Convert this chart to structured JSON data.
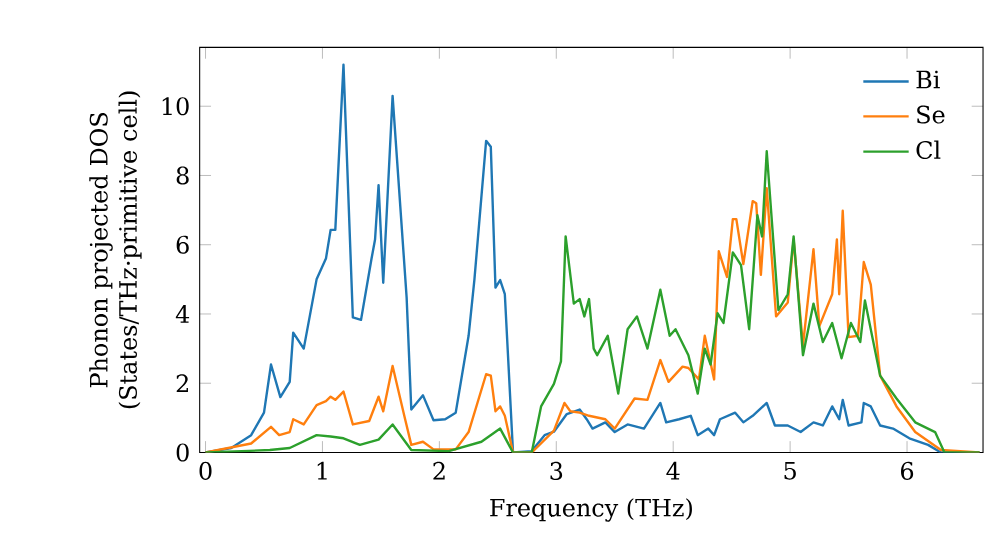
{
  "chart_data": {
    "type": "line",
    "xlabel": "Frequency (THz)",
    "ylabel": "Phonon projected DOS\n(States/THz·primitive cell)",
    "xlim": [
      -0.05,
      6.65
    ],
    "ylim": [
      0,
      11.7
    ],
    "xticks": [
      0,
      1,
      2,
      3,
      4,
      5,
      6
    ],
    "yticks": [
      0,
      2,
      4,
      6,
      8,
      10
    ],
    "legend": "top right",
    "grid": false,
    "series": [
      {
        "name": "Bi",
        "color": "#1f77b4",
        "x": [
          0,
          0.22,
          0.39,
          0.5,
          0.56,
          0.64,
          0.72,
          0.75,
          0.84,
          0.95,
          1.03,
          1.07,
          1.11,
          1.18,
          1.26,
          1.33,
          1.42,
          1.45,
          1.48,
          1.52,
          1.6,
          1.72,
          1.76,
          1.86,
          1.95,
          2.05,
          2.14,
          2.25,
          2.3,
          2.4,
          2.44,
          2.48,
          2.52,
          2.56,
          2.63,
          2.79,
          2.9,
          2.98,
          3.09,
          3.2,
          3.26,
          3.31,
          3.42,
          3.5,
          3.61,
          3.75,
          3.89,
          3.94,
          4.05,
          4.15,
          4.21,
          4.3,
          4.35,
          4.4,
          4.53,
          4.6,
          4.68,
          4.8,
          4.87,
          4.98,
          5.09,
          5.2,
          5.28,
          5.36,
          5.42,
          5.45,
          5.5,
          5.61,
          5.63,
          5.69,
          5.77,
          5.88,
          6.02,
          6.18,
          6.29,
          6.62
        ],
        "values": [
          0,
          0.13,
          0.5,
          1.15,
          2.54,
          1.6,
          2.04,
          3.46,
          3.0,
          5.0,
          5.6,
          6.43,
          6.43,
          11.2,
          3.9,
          3.83,
          5.6,
          6.15,
          7.72,
          4.9,
          10.3,
          4.48,
          1.24,
          1.65,
          0.93,
          0.96,
          1.15,
          3.37,
          5.0,
          9.0,
          8.83,
          4.76,
          4.98,
          4.57,
          0,
          0.04,
          0.5,
          0.6,
          1.11,
          1.24,
          0.96,
          0.69,
          0.87,
          0.59,
          0.81,
          0.69,
          1.43,
          0.87,
          0.96,
          1.06,
          0.5,
          0.69,
          0.5,
          0.96,
          1.15,
          0.87,
          1.06,
          1.43,
          0.78,
          0.78,
          0.59,
          0.87,
          0.78,
          1.33,
          0.96,
          1.52,
          0.78,
          0.87,
          1.43,
          1.33,
          0.78,
          0.69,
          0.41,
          0.22,
          0,
          0
        ]
      },
      {
        "name": "Se",
        "color": "#ff7f0e",
        "x": [
          0,
          0.39,
          0.56,
          0.63,
          0.72,
          0.75,
          0.84,
          0.95,
          1.03,
          1.07,
          1.11,
          1.18,
          1.26,
          1.4,
          1.48,
          1.52,
          1.6,
          1.7,
          1.76,
          1.86,
          1.95,
          2.14,
          2.25,
          2.4,
          2.44,
          2.48,
          2.52,
          2.56,
          2.63,
          2.79,
          2.98,
          3.07,
          3.12,
          3.2,
          3.28,
          3.42,
          3.5,
          3.67,
          3.78,
          3.89,
          3.96,
          4.08,
          4.13,
          4.22,
          4.27,
          4.35,
          4.39,
          4.46,
          4.51,
          4.54,
          4.6,
          4.68,
          4.71,
          4.75,
          4.8,
          4.88,
          4.98,
          5.03,
          5.11,
          5.2,
          5.25,
          5.36,
          5.4,
          5.42,
          5.45,
          5.5,
          5.58,
          5.63,
          5.69,
          5.77,
          5.91,
          6.07,
          6.29,
          6.62
        ],
        "values": [
          0,
          0.26,
          0.74,
          0.5,
          0.59,
          0.96,
          0.81,
          1.37,
          1.48,
          1.61,
          1.52,
          1.76,
          0.81,
          0.91,
          1.61,
          1.19,
          2.5,
          1.06,
          0.22,
          0.31,
          0.09,
          0.09,
          0.59,
          2.26,
          2.22,
          1.19,
          1.33,
          1.06,
          0,
          0,
          0.63,
          1.43,
          1.19,
          1.15,
          1.06,
          0.96,
          0.69,
          1.56,
          1.52,
          2.67,
          2.04,
          2.48,
          2.44,
          2.11,
          3.37,
          2.11,
          5.81,
          5.07,
          6.74,
          6.74,
          5.44,
          7.26,
          7.2,
          5.13,
          7.63,
          3.93,
          4.33,
          6.15,
          3.09,
          5.87,
          3.65,
          4.57,
          6.15,
          4.57,
          6.98,
          3.33,
          3.37,
          5.5,
          4.85,
          2.22,
          1.33,
          0.59,
          0.07,
          0
        ]
      },
      {
        "name": "Cl",
        "color": "#2ca02c",
        "x": [
          0,
          0.55,
          0.72,
          0.95,
          1.07,
          1.18,
          1.32,
          1.48,
          1.6,
          1.76,
          2.08,
          2.36,
          2.52,
          2.63,
          2.79,
          2.87,
          2.98,
          3.04,
          3.08,
          3.15,
          3.2,
          3.24,
          3.28,
          3.32,
          3.35,
          3.44,
          3.53,
          3.61,
          3.69,
          3.78,
          3.89,
          3.97,
          4.02,
          4.13,
          4.21,
          4.27,
          4.32,
          4.38,
          4.43,
          4.51,
          4.58,
          4.65,
          4.72,
          4.76,
          4.8,
          4.9,
          4.98,
          5.03,
          5.11,
          5.2,
          5.28,
          5.36,
          5.44,
          5.52,
          5.6,
          5.64,
          5.77,
          5.91,
          6.07,
          6.24,
          6.32,
          6.62
        ],
        "values": [
          0,
          0.07,
          0.13,
          0.5,
          0.46,
          0.41,
          0.22,
          0.37,
          0.81,
          0.07,
          0.04,
          0.31,
          0.69,
          0,
          0,
          1.33,
          1.98,
          2.63,
          6.24,
          4.3,
          4.43,
          3.93,
          4.43,
          3.0,
          2.81,
          3.37,
          1.7,
          3.56,
          3.93,
          3.0,
          4.7,
          3.37,
          3.56,
          2.81,
          1.7,
          3.0,
          2.54,
          4.02,
          3.74,
          5.78,
          5.41,
          3.56,
          6.85,
          6.24,
          8.7,
          4.11,
          4.57,
          6.24,
          2.81,
          4.3,
          3.19,
          3.74,
          2.72,
          3.74,
          3.19,
          4.39,
          2.22,
          1.56,
          0.87,
          0.59,
          0,
          0
        ]
      }
    ]
  }
}
